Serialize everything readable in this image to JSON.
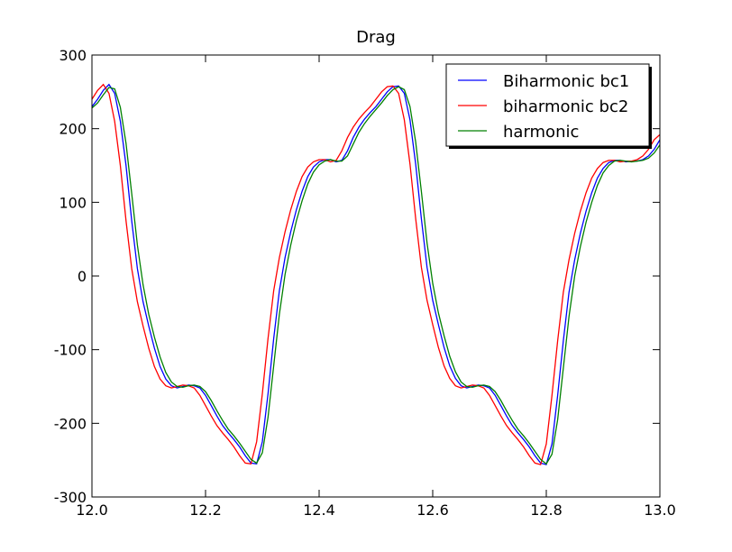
{
  "chart_data": {
    "type": "line",
    "title": "Drag",
    "x": [
      12.0,
      12.01,
      12.02,
      12.03,
      12.04,
      12.05,
      12.06,
      12.07,
      12.08,
      12.09,
      12.1,
      12.11,
      12.12,
      12.13,
      12.14,
      12.15,
      12.16,
      12.17,
      12.18,
      12.19,
      12.2,
      12.21,
      12.22,
      12.23,
      12.24,
      12.25,
      12.26,
      12.27,
      12.28,
      12.29,
      12.3,
      12.31,
      12.32,
      12.33,
      12.34,
      12.35,
      12.36,
      12.37,
      12.38,
      12.39,
      12.4,
      12.41,
      12.42,
      12.43,
      12.44,
      12.45,
      12.46,
      12.47,
      12.48,
      12.49,
      12.5,
      12.51,
      12.52,
      12.53,
      12.54,
      12.55,
      12.56,
      12.57,
      12.58,
      12.59,
      12.6,
      12.61,
      12.62,
      12.63,
      12.64,
      12.65,
      12.66,
      12.67,
      12.68,
      12.69,
      12.7,
      12.71,
      12.72,
      12.73,
      12.74,
      12.75,
      12.76,
      12.77,
      12.78,
      12.79,
      12.8,
      12.81,
      12.82,
      12.83,
      12.84,
      12.85,
      12.86,
      12.87,
      12.88,
      12.89,
      12.9,
      12.91,
      12.92,
      12.93,
      12.94,
      12.95,
      12.96,
      12.97,
      12.98,
      12.99,
      13.0
    ],
    "series": [
      {
        "name": "Biharmonic bc1",
        "color": "#0000ff",
        "values": [
          230,
          240,
          252,
          260,
          248,
          210,
          150,
          75,
          10,
          -35,
          -68,
          -98,
          -123,
          -140,
          -149,
          -152,
          -150,
          -148,
          -149,
          -152,
          -162,
          -176,
          -190,
          -203,
          -213,
          -222,
          -232,
          -244,
          -254,
          -255,
          -225,
          -160,
          -85,
          -20,
          25,
          60,
          90,
          115,
          135,
          148,
          155,
          158,
          158,
          155,
          157,
          170,
          188,
          202,
          213,
          222,
          230,
          240,
          250,
          257,
          258,
          248,
          212,
          152,
          78,
          12,
          -33,
          -66,
          -97,
          -122,
          -139,
          -149,
          -152,
          -150,
          -148,
          -149,
          -152,
          -162,
          -176,
          -190,
          -203,
          -213,
          -222,
          -232,
          -244,
          -254,
          -256,
          -228,
          -162,
          -88,
          -22,
          22,
          58,
          88,
          113,
          133,
          146,
          154,
          157,
          157,
          155,
          156,
          156,
          158,
          163,
          172,
          185
        ]
      },
      {
        "name": "biharmonic bc2",
        "color": "#ff0000",
        "values": [
          240,
          252,
          260,
          248,
          210,
          150,
          75,
          10,
          -35,
          -68,
          -98,
          -123,
          -140,
          -149,
          -152,
          -150,
          -148,
          -149,
          -152,
          -162,
          -176,
          -190,
          -203,
          -213,
          -222,
          -232,
          -244,
          -254,
          -255,
          -225,
          -160,
          -85,
          -20,
          25,
          60,
          90,
          115,
          135,
          148,
          155,
          158,
          158,
          155,
          157,
          170,
          188,
          202,
          213,
          222,
          230,
          240,
          250,
          257,
          258,
          248,
          212,
          152,
          78,
          12,
          -33,
          -66,
          -97,
          -122,
          -139,
          -149,
          -152,
          -150,
          -148,
          -149,
          -152,
          -162,
          -176,
          -190,
          -203,
          -213,
          -222,
          -232,
          -244,
          -254,
          -256,
          -228,
          -162,
          -88,
          -22,
          22,
          58,
          88,
          113,
          133,
          146,
          154,
          157,
          157,
          155,
          156,
          156,
          158,
          163,
          172,
          185,
          192
        ]
      },
      {
        "name": "harmonic",
        "color": "#008000",
        "values": [
          228,
          235,
          246,
          256,
          254,
          229,
          180,
          112,
          42,
          -12,
          -52,
          -83,
          -110,
          -131,
          -144,
          -150,
          -151,
          -149,
          -148,
          -150,
          -157,
          -169,
          -183,
          -196,
          -208,
          -217,
          -227,
          -238,
          -249,
          -254,
          -240,
          -192,
          -122,
          -52,
          2,
          42,
          75,
          102,
          125,
          141,
          151,
          156,
          158,
          156,
          156,
          163,
          179,
          195,
          207,
          217,
          226,
          235,
          245,
          253,
          257,
          253,
          230,
          182,
          115,
          45,
          -10,
          -50,
          -81,
          -109,
          -130,
          -144,
          -150,
          -151,
          -149,
          -148,
          -150,
          -157,
          -169,
          -183,
          -196,
          -208,
          -217,
          -227,
          -238,
          -249,
          -255,
          -242,
          -195,
          -125,
          -55,
          0,
          40,
          73,
          100,
          123,
          140,
          150,
          156,
          157,
          156,
          155,
          156,
          157,
          160,
          167,
          178
        ]
      }
    ],
    "xlim": [
      12.0,
      13.0
    ],
    "ylim": [
      -300,
      300
    ],
    "xticks": [
      {
        "value": 12.0,
        "label": "12.0"
      },
      12.2,
      12.4,
      12.6,
      12.8,
      {
        "value": 13.0,
        "label": "13.0"
      }
    ],
    "yticks": [
      -300,
      -200,
      -100,
      0,
      100,
      200,
      300
    ],
    "grid": false,
    "legend": "upper right"
  }
}
